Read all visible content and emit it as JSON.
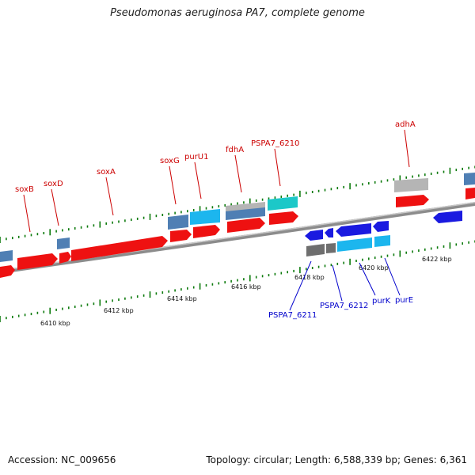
{
  "title": "Pseudomonas aeruginosa PA7, complete genome",
  "accession": "Accession: NC_009656",
  "summary": "Topology: circular; Length: 6,588,339 bp; Genes: 6,361",
  "colors": {
    "forward_gene": "#ee1111",
    "reverse_gene": "#1a1ae0",
    "forward_label": "#cc0000",
    "reverse_label": "#0000cc",
    "backbone": "#8c8c8c",
    "tick": "#0c7a0c",
    "cds_steel": "#4f7fb4",
    "cds_sky": "#1cb6ee",
    "cds_silver": "#b5b5b5",
    "cds_teal": "#1cc8c8",
    "cds_gray": "#6e6e6e"
  },
  "scale_labels": [
    "6410 kbp",
    "6412 kbp",
    "6414 kbp",
    "6416 kbp",
    "6418 kbp",
    "6420 kbp",
    "6422 kbp"
  ],
  "forward_labels": [
    "soxB",
    "soxD",
    "soxA",
    "soxG",
    "purU1",
    "fdhA",
    "PSPA7_6210",
    "adhA"
  ],
  "reverse_labels": [
    "PSPA7_6211",
    "PSPA7_6212",
    "purK",
    "purE"
  ]
}
